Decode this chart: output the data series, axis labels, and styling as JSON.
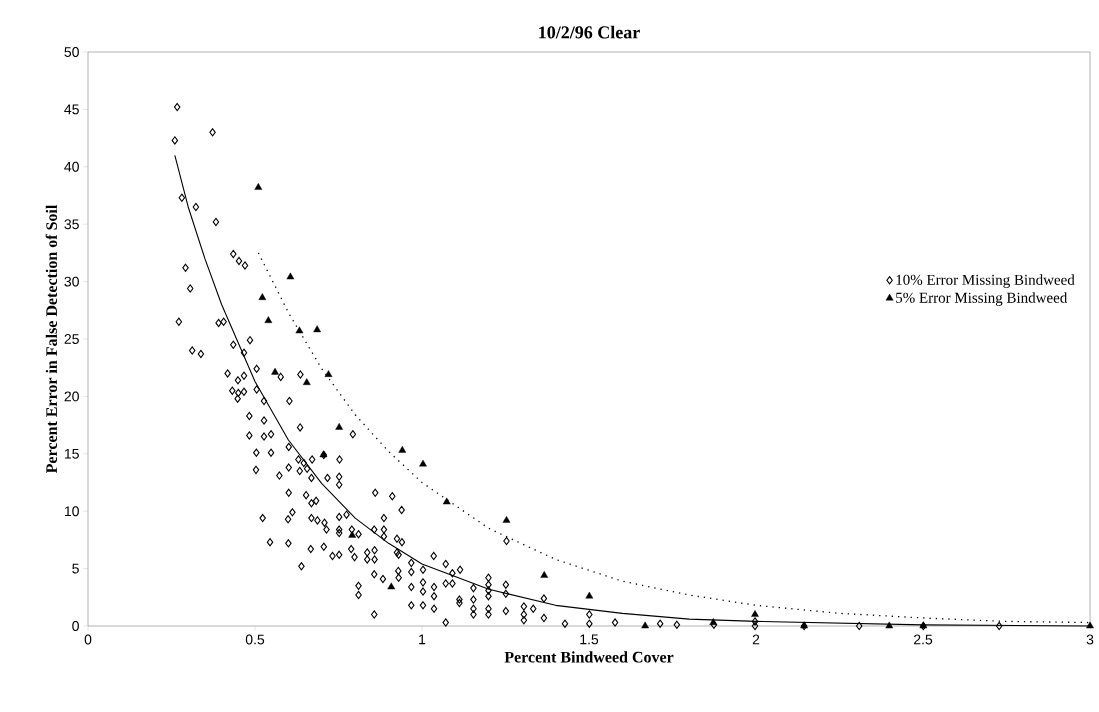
{
  "chart_data": {
    "type": "scatter",
    "title": "10/2/96 Clear",
    "xlabel": "Percent Bindweed Cover",
    "ylabel": "Percent Error in False Detection of Soil",
    "xlim": [
      0,
      3
    ],
    "xticks": [
      0,
      0.5,
      1,
      1.5,
      2,
      2.5,
      3
    ],
    "ylim": [
      0,
      50
    ],
    "yticks": [
      0,
      5,
      10,
      15,
      20,
      25,
      30,
      35,
      40,
      45,
      50
    ],
    "legend": "right",
    "series": [
      {
        "name": "10% Error Missing Bindweed",
        "color": "#000000",
        "marker": "diamond",
        "x": [
          0.267,
          0.26,
          0.373,
          0.281,
          0.323,
          0.383,
          0.435,
          0.452,
          0.47,
          0.292,
          0.306,
          0.272,
          0.391,
          0.406,
          0.485,
          0.435,
          0.312,
          0.338,
          0.467,
          0.418,
          0.449,
          0.467,
          0.505,
          0.577,
          0.636,
          0.432,
          0.45,
          0.467,
          0.448,
          0.505,
          0.527,
          0.603,
          0.483,
          0.527,
          0.635,
          0.793,
          0.483,
          0.527,
          0.548,
          0.504,
          0.548,
          0.601,
          0.706,
          0.753,
          0.503,
          0.573,
          0.601,
          0.63,
          0.646,
          0.671,
          0.634,
          0.656,
          0.669,
          0.717,
          0.752,
          0.752,
          0.86,
          0.911,
          0.939,
          0.601,
          0.653,
          0.669,
          0.683,
          0.774,
          0.752,
          0.886,
          0.523,
          0.612,
          0.599,
          0.669,
          0.687,
          0.708,
          0.714,
          0.752,
          0.752,
          0.79,
          0.81,
          0.857,
          0.886,
          0.886,
          0.925,
          0.94,
          1.035,
          0.545,
          0.6,
          0.667,
          0.706,
          0.732,
          0.752,
          0.788,
          0.798,
          0.836,
          0.858,
          0.836,
          0.858,
          0.925,
          0.93,
          0.639,
          0.857,
          0.883,
          0.929,
          0.93,
          0.968,
          0.968,
          1.003,
          0.81,
          0.81,
          0.968,
          1.003,
          1.003,
          0.968,
          1.003,
          1.036,
          1.036,
          1.036,
          0.857,
          1.253,
          1.071,
          1.091,
          1.114,
          1.071,
          1.091,
          1.071,
          1.112,
          1.112,
          1.154,
          1.154,
          1.154,
          1.154,
          1.199,
          1.199,
          1.199,
          1.199,
          1.199,
          1.199,
          1.251,
          1.251,
          1.251,
          1.305,
          1.305,
          1.305,
          1.333,
          1.365,
          1.365,
          1.428,
          1.501,
          1.501,
          1.578,
          1.713,
          1.763,
          1.874,
          1.997,
          1.997,
          2.144,
          2.309,
          2.501,
          2.728
        ],
        "values": [
          45.2,
          42.3,
          43.0,
          37.3,
          36.5,
          35.2,
          32.4,
          31.8,
          31.4,
          31.2,
          29.4,
          26.5,
          26.4,
          26.5,
          24.9,
          24.5,
          24.0,
          23.7,
          23.8,
          22.0,
          21.4,
          21.8,
          22.4,
          21.7,
          21.9,
          20.5,
          20.3,
          20.4,
          19.8,
          20.6,
          19.6,
          19.6,
          18.3,
          17.9,
          17.3,
          16.7,
          16.6,
          16.5,
          16.7,
          15.1,
          15.1,
          15.6,
          14.9,
          14.5,
          13.6,
          13.1,
          13.8,
          14.5,
          14.2,
          14.5,
          13.5,
          13.7,
          12.9,
          12.9,
          13.0,
          12.3,
          11.6,
          11.3,
          10.1,
          11.6,
          11.4,
          10.7,
          10.9,
          9.7,
          9.5,
          9.4,
          9.4,
          9.9,
          9.3,
          9.4,
          9.2,
          9.0,
          8.4,
          8.4,
          8.1,
          8.4,
          8.0,
          8.4,
          8.4,
          7.8,
          7.6,
          7.3,
          6.1,
          7.3,
          7.2,
          6.7,
          6.9,
          6.1,
          6.2,
          6.7,
          6.0,
          6.4,
          6.6,
          5.8,
          5.8,
          6.4,
          6.2,
          5.2,
          4.5,
          4.1,
          4.8,
          4.2,
          5.5,
          4.7,
          4.9,
          3.5,
          2.7,
          3.4,
          3.8,
          3.0,
          1.8,
          1.8,
          3.4,
          2.6,
          1.5,
          1.0,
          7.4,
          5.4,
          4.6,
          4.9,
          3.7,
          3.7,
          0.3,
          2.3,
          2.0,
          3.3,
          2.3,
          1.5,
          1.0,
          4.2,
          3.6,
          3.1,
          2.6,
          1.5,
          1.0,
          3.6,
          2.8,
          1.3,
          1.7,
          1.0,
          0.5,
          1.5,
          2.4,
          0.7,
          0.2,
          1.0,
          0.2,
          0.3,
          0.2,
          0.1,
          0.1,
          0.4,
          0.0,
          0.0,
          0.0,
          0.0,
          0.0
        ]
      },
      {
        "name": "5%   Error Missing Bindweed",
        "color": "#000000",
        "marker": "triangle",
        "x": [
          0.51,
          0.606,
          0.522,
          0.54,
          0.633,
          0.686,
          0.56,
          0.655,
          0.72,
          0.752,
          0.705,
          0.941,
          1.003,
          0.791,
          0.908,
          1.074,
          1.253,
          1.366,
          1.501,
          1.668,
          1.872,
          1.997,
          2.144,
          2.399,
          2.501,
          3.0
        ],
        "values": [
          38.2,
          30.4,
          28.6,
          26.6,
          25.7,
          25.8,
          22.1,
          21.2,
          21.9,
          17.3,
          14.9,
          15.3,
          14.1,
          7.9,
          3.4,
          10.8,
          9.2,
          4.4,
          2.6,
          0.0,
          0.3,
          1.0,
          0.0,
          0.0,
          0.0,
          0.0
        ]
      },
      {
        "type": "line",
        "color": "#000000",
        "marker": "none",
        "line_style": "solid",
        "x": [
          0.26,
          0.3,
          0.35,
          0.4,
          0.5,
          0.6,
          0.7,
          0.8,
          0.9,
          1.0,
          1.2,
          1.4,
          1.6,
          1.8,
          2.0,
          2.5,
          3.0
        ],
        "values": [
          41,
          36.5,
          32,
          28,
          21.3,
          16.2,
          12.4,
          9.4,
          7.2,
          5.4,
          3.2,
          1.8,
          1.1,
          0.6,
          0.4,
          0.1,
          0.0
        ]
      },
      {
        "type": "line",
        "color": "#000000",
        "marker": "none",
        "line_style": "dotted",
        "x": [
          0.51,
          0.6,
          0.7,
          0.8,
          0.9,
          1.0,
          1.2,
          1.4,
          1.6,
          1.8,
          2.0,
          2.25,
          2.5,
          2.75,
          3.0
        ],
        "values": [
          32.5,
          27.3,
          22.4,
          18.4,
          15.2,
          12.5,
          8.5,
          5.8,
          3.9,
          2.7,
          1.8,
          1.1,
          0.7,
          0.4,
          0.3
        ]
      }
    ]
  }
}
